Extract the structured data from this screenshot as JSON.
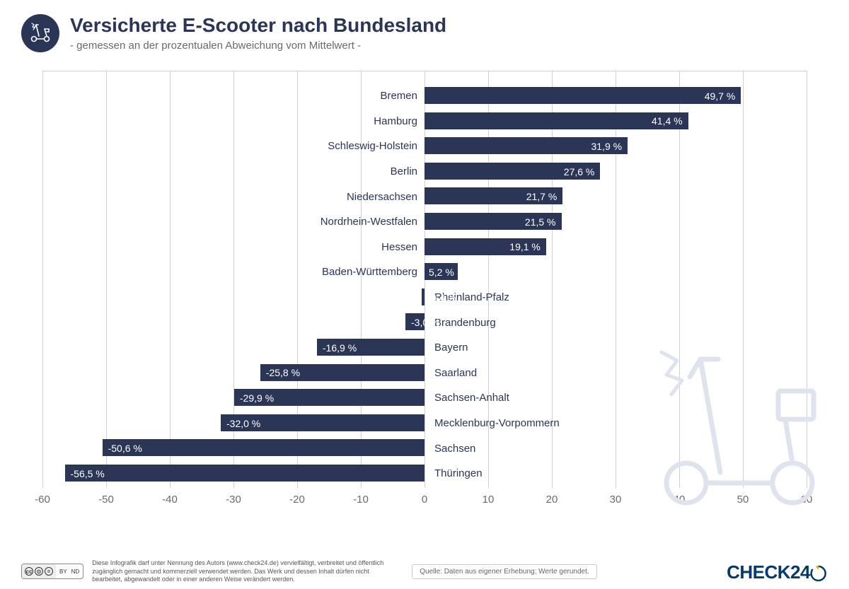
{
  "header": {
    "title": "Versicherte E-Scooter nach Bundesland",
    "subtitle": "- gemessen an der prozentualen Abweichung vom Mittelwert -"
  },
  "chart": {
    "type": "bar-horizontal-diverging",
    "xlim": [
      -60,
      60
    ],
    "xtick_step": 10,
    "xticks": [
      -60,
      -50,
      -40,
      -30,
      -20,
      -10,
      0,
      10,
      20,
      30,
      40,
      50,
      60
    ],
    "bar_color": "#2b3555",
    "grid_color": "#d0d0d0",
    "background_color": "#ffffff",
    "label_fontsize": 15,
    "value_fontsize": 14,
    "categories": [
      "Bremen",
      "Hamburg",
      "Schleswig-Holstein",
      "Berlin",
      "Niedersachsen",
      "Nordrhein-Westfalen",
      "Hessen",
      "Baden-Württemberg",
      "Rheinland-Pfalz",
      "Brandenburg",
      "Bayern",
      "Saarland",
      "Sachsen-Anhalt",
      "Mecklenburg-Vorpommern",
      "Sachsen",
      "Thüringen"
    ],
    "values": [
      49.7,
      41.4,
      31.9,
      27.6,
      21.7,
      21.5,
      19.1,
      5.2,
      -0.4,
      -3.0,
      -16.9,
      -25.8,
      -29.9,
      -32.0,
      -50.6,
      -56.5
    ],
    "value_labels": [
      "49,7 %",
      "41,4 %",
      "31,9 %",
      "27,6 %",
      "21,7 %",
      "21,5 %",
      "19,1 %",
      "5,2 %",
      "-0,4 %",
      "-3,0 %",
      "-16,9 %",
      "-25,8 %",
      "-29,9 %",
      "-32,0 %",
      "-50,6 %",
      "-56,5 %"
    ]
  },
  "footer": {
    "license_text": "Diese Infografik darf unter Nennung des Autors (www.check24.de) vervielfältigt, verbreitet und öffentlich zugänglich gemacht und kommerziell verwendet werden. Das Werk und dessen Inhalt dürfen nicht bearbeitet, abgewandelt oder in einer anderen Weise verändert werden.",
    "source": "Quelle: Daten aus eigener Erhebung; Werte gerundet.",
    "brand": "CHECK24",
    "cc_by": "BY",
    "cc_nd": "ND"
  }
}
